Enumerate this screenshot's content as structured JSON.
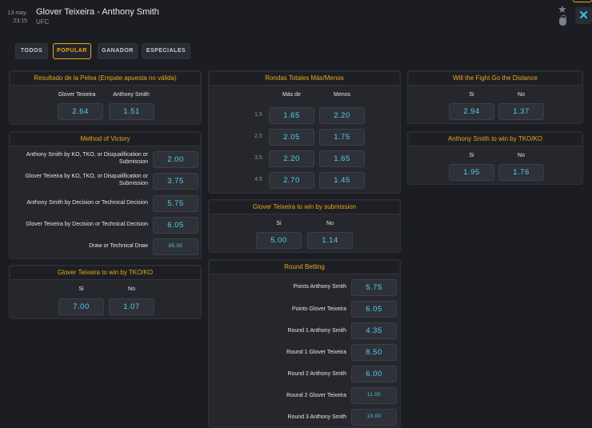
{
  "header": {
    "date_line1": "13 may.",
    "date_line2": "23:15",
    "title": "Glover Teixeira - Anthony Smith",
    "subtitle": "UFC",
    "close_glyph": "✕"
  },
  "icons": [
    "star-icon",
    "moneybag-icon",
    "close-icon"
  ],
  "tabs": [
    {
      "label": "TODOS",
      "active": false
    },
    {
      "label": "POPULAR",
      "active": true
    },
    {
      "label": "GANADOR",
      "active": false
    },
    {
      "label": "ESPECIALES",
      "active": false
    }
  ],
  "colors": {
    "accent": "#e6a817",
    "odds": "#4fd0f0",
    "background": "#1c1d22",
    "panel": "#25272d"
  },
  "result": {
    "title": "Resultado de la Pelea (Empate apuesta no válida)",
    "col1": "Glover Teixeira",
    "col2": "Anthony Smith",
    "odd1": "2.64",
    "odd2": "1.51"
  },
  "method": {
    "title": "Method of Victory",
    "rows": [
      {
        "label": "Anthony Smith by KO, TKO, or Disqualification or Submission",
        "odd": "2.00"
      },
      {
        "label": "Glover Teixeira by KO, TKO, or Disqualification or Submission",
        "odd": "3.75"
      },
      {
        "label": "Anthony Smith by Decision or Technical Decision",
        "odd": "5.75"
      },
      {
        "label": "Glover Teixeira by Decision or Technical Decision",
        "odd": "6.05"
      },
      {
        "label": "Draw or Technical Draw",
        "odd": "85.00"
      }
    ]
  },
  "glover_tko": {
    "title": "Glover Teixeira to win by TKO/KO",
    "yes": "Si",
    "no": "No",
    "odd_yes": "7.00",
    "odd_no": "1.07"
  },
  "rounds_total": {
    "title": "Rondas Totales Más/Menos",
    "col1": "Más de",
    "col2": "Menos",
    "rows": [
      {
        "line": "1.5",
        "over": "1.65",
        "under": "2.20"
      },
      {
        "line": "2.5",
        "over": "2.05",
        "under": "1.75"
      },
      {
        "line": "3.5",
        "over": "2.20",
        "under": "1.65"
      },
      {
        "line": "4.5",
        "over": "2.70",
        "under": "1.45"
      }
    ]
  },
  "glover_sub": {
    "title": "Glover Teixeira to win by submission",
    "yes": "Si",
    "no": "No",
    "odd_yes": "5.00",
    "odd_no": "1.14"
  },
  "round_betting": {
    "title": "Round Betting",
    "rows": [
      {
        "label": "Points Anthony Smith",
        "odd": "5.75"
      },
      {
        "label": "Points Glover Teixeira",
        "odd": "6.05"
      },
      {
        "label": "Round 1 Anthony Smith",
        "odd": "4.35"
      },
      {
        "label": "Round 1 Glover Teixeira",
        "odd": "8.50"
      },
      {
        "label": "Round 2 Anthony Smith",
        "odd": "6.00"
      },
      {
        "label": "Round 2 Glover Teixeira",
        "odd": "11.00"
      },
      {
        "label": "Round 3 Anthony Smith",
        "odd": "10.00"
      }
    ]
  },
  "distance": {
    "title": "Will the Fight Go the Distance",
    "yes": "Si",
    "no": "No",
    "odd_yes": "2.94",
    "odd_no": "1.37"
  },
  "smith_tko": {
    "title": "Anthony Smith to win by TKO/KO",
    "yes": "Si",
    "no": "No",
    "odd_yes": "1.95",
    "odd_no": "1.76"
  }
}
